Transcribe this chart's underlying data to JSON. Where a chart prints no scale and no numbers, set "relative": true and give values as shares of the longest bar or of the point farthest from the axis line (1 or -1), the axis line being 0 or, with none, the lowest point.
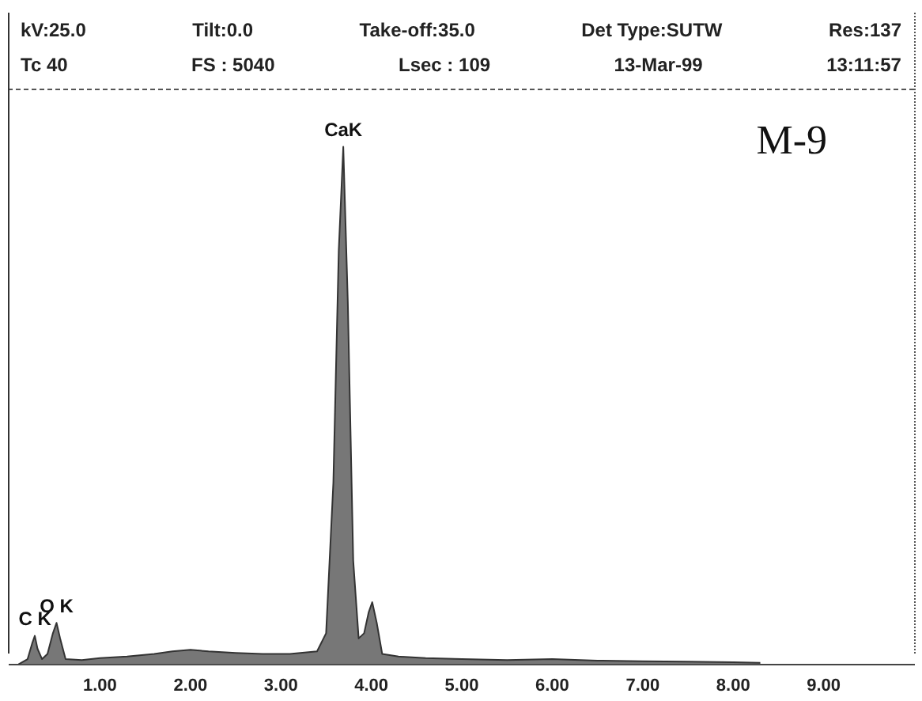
{
  "chart_data": {
    "type": "area",
    "title": "M-9",
    "relative": true,
    "color": "#777777",
    "x": [
      0.1,
      0.2,
      0.25,
      0.28,
      0.31,
      0.36,
      0.42,
      0.48,
      0.52,
      0.56,
      0.62,
      0.8,
      1.0,
      1.3,
      1.6,
      1.8,
      2.0,
      2.2,
      2.5,
      2.8,
      3.1,
      3.4,
      3.5,
      3.58,
      3.64,
      3.69,
      3.74,
      3.8,
      3.86,
      3.92,
      3.97,
      4.01,
      4.06,
      4.12,
      4.3,
      4.6,
      5.0,
      5.5,
      6.0,
      6.5,
      7.0,
      7.5,
      8.0,
      8.3
    ],
    "values": [
      0,
      0.01,
      0.04,
      0.055,
      0.03,
      0.01,
      0.02,
      0.06,
      0.08,
      0.05,
      0.01,
      0.008,
      0.012,
      0.015,
      0.02,
      0.025,
      0.028,
      0.025,
      0.022,
      0.02,
      0.02,
      0.025,
      0.06,
      0.35,
      0.8,
      1,
      0.7,
      0.2,
      0.05,
      0.06,
      0.1,
      0.12,
      0.08,
      0.02,
      0.015,
      0.012,
      0.01,
      0.008,
      0.01,
      0.007,
      0.006,
      0.005,
      0.004,
      0.003
    ],
    "xlim": [
      0,
      10
    ],
    "xticks": [
      {
        "value": 1,
        "label": "1.00"
      },
      {
        "value": 2,
        "label": "2.00"
      },
      {
        "value": 3,
        "label": "3.00"
      },
      {
        "value": 4,
        "label": "4.00"
      },
      {
        "value": 5,
        "label": "5.00"
      },
      {
        "value": 6,
        "label": "6.00"
      },
      {
        "value": 7,
        "label": "7.00"
      },
      {
        "value": 8,
        "label": "8.00"
      },
      {
        "value": 9,
        "label": "9.00"
      }
    ],
    "grid": false,
    "legend": false,
    "tick_labels": "x",
    "annotations": [
      "kV:25.0",
      "Tilt:0.0",
      "Take-off:35.0",
      "Det Type:SUTW",
      "Res:137",
      "Tc 40",
      "FS : 5040",
      "Lsec : 109",
      "13-Mar-99",
      "13:11:57",
      {
        "text": "CaK",
        "x": 3.69,
        "y": 1
      },
      {
        "text": "O K",
        "x": 0.52,
        "y": 0.08
      },
      {
        "text": "C K",
        "x": 0.28,
        "y": 0.055
      }
    ]
  }
}
